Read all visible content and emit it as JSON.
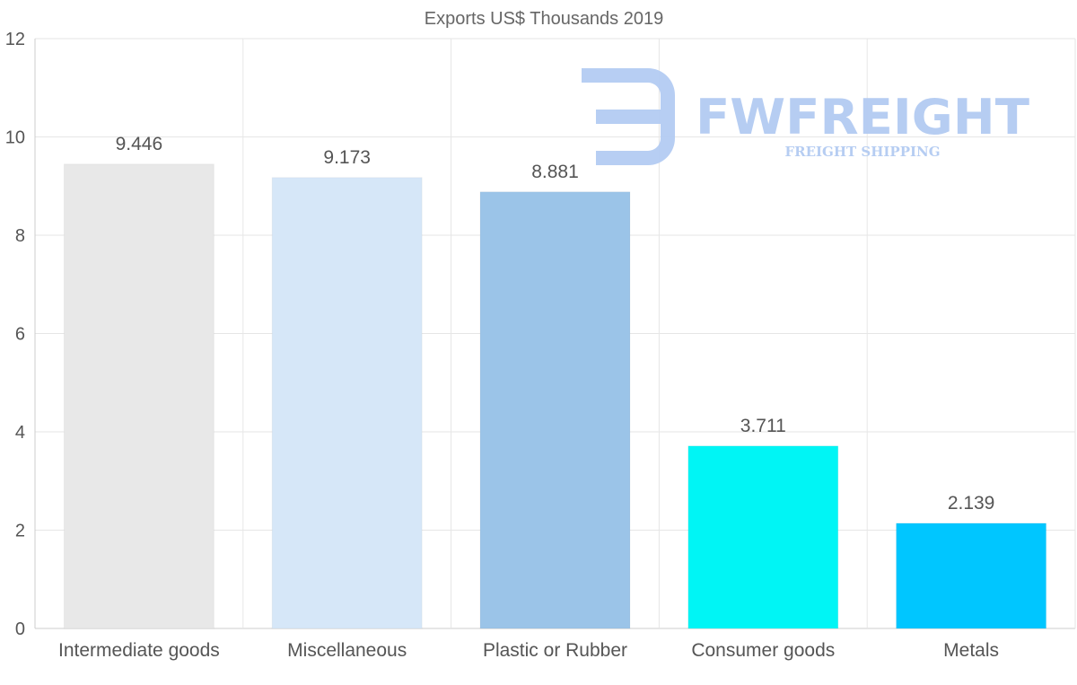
{
  "chart_data": {
    "type": "bar",
    "title": "Exports US$ Thousands 2019",
    "categories": [
      "Intermediate goods",
      "Miscellaneous",
      "Plastic or Rubber",
      "Consumer goods",
      "Metals"
    ],
    "values": [
      9.446,
      9.173,
      8.881,
      3.711,
      2.139
    ],
    "value_labels": [
      "9.446",
      "9.173",
      "8.881",
      "3.711",
      "2.139"
    ],
    "bar_colors": [
      "#e8e8e8",
      "#d6e7f8",
      "#9bc4e8",
      "#00f5f5",
      "#00c6ff"
    ],
    "ylim": [
      0,
      12
    ],
    "yticks": [
      0,
      2,
      4,
      6,
      8,
      10,
      12
    ],
    "xlabel": "",
    "ylabel": "",
    "grid": true,
    "legend": "none"
  },
  "watermark": {
    "brand": "FWFREIGHT",
    "tagline": "FREIGHT SHIPPING",
    "color": "#b3cbf2"
  }
}
